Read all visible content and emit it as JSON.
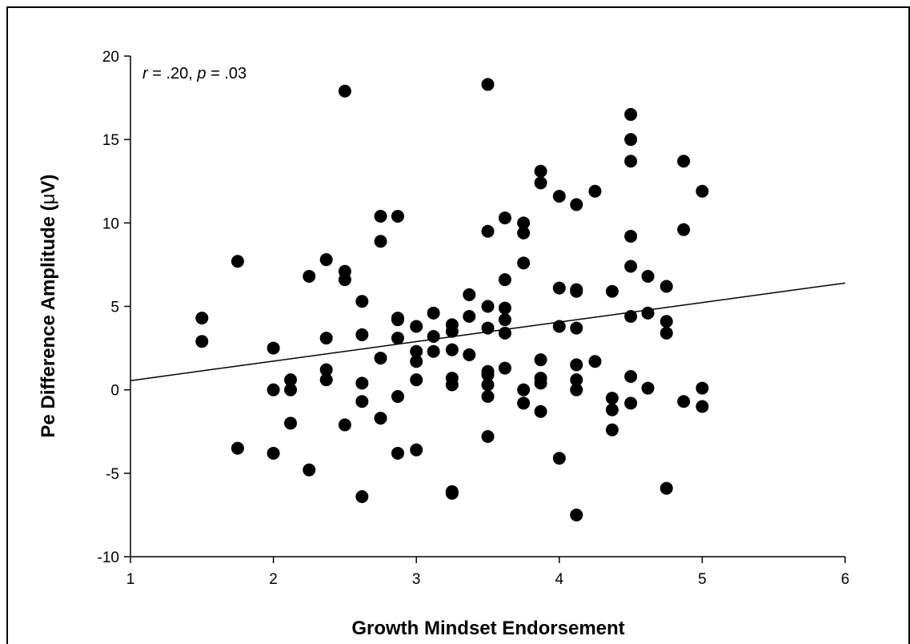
{
  "chart_data": {
    "type": "scatter",
    "title": "",
    "xlabel": "Growth Mindset Endorsement",
    "ylabel_main": "Pe Difference Amplitude (",
    "ylabel_mu": "μ",
    "ylabel_tail": "V)",
    "annotation": {
      "r_sym": "r",
      "r_val": " = .20, ",
      "p_sym": "p",
      "p_val": " = .03"
    },
    "xlim": [
      1,
      6
    ],
    "ylim": [
      -10,
      20
    ],
    "x_ticks": [
      1,
      2,
      3,
      4,
      5,
      6
    ],
    "y_ticks": [
      -10,
      -5,
      0,
      5,
      10,
      15,
      20
    ],
    "regression_line": {
      "x": [
        1,
        6
      ],
      "y": [
        0.55,
        6.4
      ]
    },
    "grid": false,
    "points": [
      [
        1.5,
        4.3
      ],
      [
        1.5,
        2.9
      ],
      [
        1.75,
        7.7
      ],
      [
        1.75,
        -3.5
      ],
      [
        2.0,
        2.5
      ],
      [
        2.0,
        0.0
      ],
      [
        2.0,
        -3.8
      ],
      [
        2.12,
        0.6
      ],
      [
        2.12,
        0.0
      ],
      [
        2.12,
        -2.0
      ],
      [
        2.25,
        6.8
      ],
      [
        2.25,
        -4.8
      ],
      [
        2.37,
        7.8
      ],
      [
        2.37,
        3.1
      ],
      [
        2.37,
        1.2
      ],
      [
        2.37,
        0.6
      ],
      [
        2.5,
        17.9
      ],
      [
        2.5,
        7.1
      ],
      [
        2.5,
        6.6
      ],
      [
        2.5,
        -2.1
      ],
      [
        2.62,
        5.3
      ],
      [
        2.62,
        3.3
      ],
      [
        2.62,
        0.4
      ],
      [
        2.62,
        -0.7
      ],
      [
        2.62,
        -6.4
      ],
      [
        2.75,
        10.4
      ],
      [
        2.75,
        8.9
      ],
      [
        2.75,
        1.9
      ],
      [
        2.75,
        -1.7
      ],
      [
        2.87,
        10.4
      ],
      [
        2.87,
        4.3
      ],
      [
        2.87,
        4.2
      ],
      [
        2.87,
        3.1
      ],
      [
        2.87,
        -0.4
      ],
      [
        2.87,
        -3.8
      ],
      [
        3.0,
        3.8
      ],
      [
        3.0,
        2.3
      ],
      [
        3.0,
        1.7
      ],
      [
        3.0,
        0.6
      ],
      [
        3.0,
        -3.6
      ],
      [
        3.12,
        4.6
      ],
      [
        3.12,
        3.2
      ],
      [
        3.12,
        2.3
      ],
      [
        3.25,
        3.9
      ],
      [
        3.25,
        3.5
      ],
      [
        3.25,
        2.4
      ],
      [
        3.25,
        0.7
      ],
      [
        3.25,
        0.3
      ],
      [
        3.25,
        -6.1
      ],
      [
        3.25,
        -6.2
      ],
      [
        3.37,
        5.7
      ],
      [
        3.37,
        4.4
      ],
      [
        3.37,
        2.1
      ],
      [
        3.5,
        18.3
      ],
      [
        3.5,
        9.5
      ],
      [
        3.5,
        5.0
      ],
      [
        3.5,
        3.7
      ],
      [
        3.5,
        1.1
      ],
      [
        3.5,
        0.9
      ],
      [
        3.5,
        0.3
      ],
      [
        3.5,
        -0.4
      ],
      [
        3.5,
        -2.8
      ],
      [
        3.62,
        10.3
      ],
      [
        3.62,
        6.6
      ],
      [
        3.62,
        4.9
      ],
      [
        3.62,
        4.2
      ],
      [
        3.62,
        3.4
      ],
      [
        3.62,
        1.3
      ],
      [
        3.75,
        10.0
      ],
      [
        3.75,
        9.4
      ],
      [
        3.75,
        7.6
      ],
      [
        3.75,
        0.0
      ],
      [
        3.75,
        -0.8
      ],
      [
        3.87,
        13.1
      ],
      [
        3.87,
        12.4
      ],
      [
        3.87,
        1.8
      ],
      [
        3.87,
        0.7
      ],
      [
        3.87,
        0.4
      ],
      [
        3.87,
        -1.3
      ],
      [
        4.0,
        11.6
      ],
      [
        4.0,
        6.1
      ],
      [
        4.0,
        3.8
      ],
      [
        4.0,
        -4.1
      ],
      [
        4.12,
        11.1
      ],
      [
        4.12,
        6.0
      ],
      [
        4.12,
        5.9
      ],
      [
        4.12,
        3.7
      ],
      [
        4.12,
        1.5
      ],
      [
        4.12,
        0.6
      ],
      [
        4.12,
        0.0
      ],
      [
        4.12,
        -7.5
      ],
      [
        4.25,
        11.9
      ],
      [
        4.25,
        1.7
      ],
      [
        4.37,
        5.9
      ],
      [
        4.37,
        -0.5
      ],
      [
        4.37,
        -1.2
      ],
      [
        4.37,
        -2.4
      ],
      [
        4.5,
        16.5
      ],
      [
        4.5,
        15.0
      ],
      [
        4.5,
        13.7
      ],
      [
        4.5,
        9.2
      ],
      [
        4.5,
        7.4
      ],
      [
        4.5,
        4.4
      ],
      [
        4.5,
        0.8
      ],
      [
        4.5,
        -0.8
      ],
      [
        4.62,
        6.8
      ],
      [
        4.62,
        4.6
      ],
      [
        4.62,
        0.1
      ],
      [
        4.75,
        6.2
      ],
      [
        4.75,
        4.1
      ],
      [
        4.75,
        3.4
      ],
      [
        4.75,
        -5.9
      ],
      [
        4.87,
        13.7
      ],
      [
        4.87,
        9.6
      ],
      [
        4.87,
        -0.7
      ],
      [
        5.0,
        11.9
      ],
      [
        5.0,
        0.1
      ],
      [
        5.0,
        -1.0
      ]
    ]
  }
}
